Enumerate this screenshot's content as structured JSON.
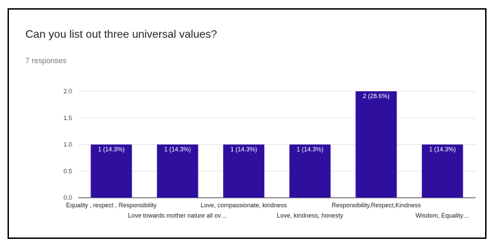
{
  "question": {
    "title": "Can you list out three universal values?",
    "responses": "7 responses"
  },
  "colors": {
    "bar": "#2e0f9e",
    "grid": "#e6e6e6",
    "axis": "#333333"
  },
  "chart_data": {
    "type": "bar",
    "title": "Can you list out three universal values?",
    "xlabel": "",
    "ylabel": "",
    "ylim": [
      0,
      2
    ],
    "yticks": [
      "0.0",
      "0.5",
      "1.0",
      "1.5",
      "2.0"
    ],
    "grid": true,
    "categories": [
      "Equality , respect , Responsibility",
      "Love towards mother nature all ov…",
      "Love, compassionate, kindness",
      "Love, kindness, honesty",
      "Responsibility,Respect,Kindness",
      "Wisdom, Equality…"
    ],
    "values": [
      1,
      1,
      1,
      1,
      2,
      1
    ],
    "data_labels": [
      "1 (14.3%)",
      "1 (14.3%)",
      "1 (14.3%)",
      "1 (14.3%)",
      "2 (28.6%)",
      "1 (14.3%)"
    ]
  }
}
